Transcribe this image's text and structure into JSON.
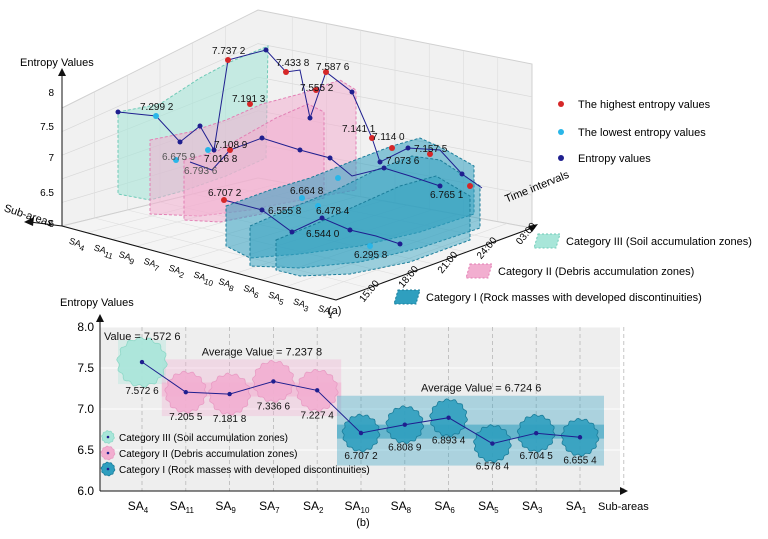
{
  "top_panel": {
    "label": "(a)",
    "z_axis_label": "Entropy Values",
    "z_ticks": [
      "6",
      "6.5",
      "7",
      "7.5",
      "8"
    ],
    "x_axis_label": "Sub-areas",
    "x_ticks": [
      "SA4",
      "SA11",
      "SA9",
      "SA7",
      "SA2",
      "SA10",
      "SA8",
      "SA6",
      "SA5",
      "SA3",
      "SA1"
    ],
    "y_axis_label": "Time intervals",
    "y_ticks": [
      "15:00",
      "18:00",
      "21:00",
      "24:00",
      "03:00"
    ],
    "legend_points": [
      {
        "label": "The highest entropy values",
        "color": "#d62728"
      },
      {
        "label": "The lowest entropy values",
        "color": "#29b6e8"
      },
      {
        "label": "Entropy values",
        "color": "#1f1f8f"
      }
    ],
    "legend_categories": [
      {
        "label": "Category III (Soil accumulation zones)",
        "color": "#a8e6d9"
      },
      {
        "label": "Category II (Debris accumulation zones)",
        "color": "#f2aed0"
      },
      {
        "label": "Category I (Rock masses with developed discontinuities)",
        "color": "#2f9fbf"
      }
    ],
    "annotations": [
      "7.737 2",
      "7.433 8",
      "7.587 6",
      "7.555 2",
      "7.299 2",
      "7.191 3",
      "7.108 9",
      "7.016 8",
      "6.675 9",
      "6.793 6",
      "7.141 1",
      "7.114 0",
      "7.157 5",
      "7.073 6",
      "6.707 2",
      "6.664 8",
      "6.555 8",
      "6.478 4",
      "6.544 0",
      "6.295 8",
      "6.765 1"
    ]
  },
  "chart_data": {
    "type": "line",
    "title": "",
    "panel_label": "(b)",
    "xlabel": "Sub-areas",
    "ylabel": "Entropy Values",
    "ylim": [
      6.0,
      8.0
    ],
    "y_ticks": [
      "6.0",
      "6.5",
      "7.0",
      "7.5",
      "8.0"
    ],
    "grid": true,
    "categories": [
      "SA4",
      "SA11",
      "SA9",
      "SA7",
      "SA2",
      "SA10",
      "SA8",
      "SA6",
      "SA5",
      "SA3",
      "SA1"
    ],
    "category_labels": [
      {
        "main": "SA",
        "sub": "4"
      },
      {
        "main": "SA",
        "sub": "11"
      },
      {
        "main": "SA",
        "sub": "9"
      },
      {
        "main": "SA",
        "sub": "7"
      },
      {
        "main": "SA",
        "sub": "2"
      },
      {
        "main": "SA",
        "sub": "10"
      },
      {
        "main": "SA",
        "sub": "8"
      },
      {
        "main": "SA",
        "sub": "6"
      },
      {
        "main": "SA",
        "sub": "5"
      },
      {
        "main": "SA",
        "sub": "3"
      },
      {
        "main": "SA",
        "sub": "1"
      }
    ],
    "values": [
      7.5726,
      7.2055,
      7.1818,
      7.3366,
      7.2274,
      6.7072,
      6.8089,
      6.8934,
      6.5784,
      6.7045,
      6.6554
    ],
    "value_labels": [
      "7.572 6",
      "7.205 5",
      "7.181 8",
      "7.336 6",
      "7.227 4",
      "6.707 2",
      "6.808 9",
      "6.893 4",
      "6.578 4",
      "6.704 5",
      "6.655 4"
    ],
    "category_of_point": [
      3,
      2,
      2,
      2,
      2,
      1,
      1,
      1,
      1,
      1,
      1
    ],
    "groups": [
      {
        "category": 3,
        "start": 0,
        "end": 0,
        "average": 7.5726,
        "average_label": "Value = 7.572 6",
        "color": "#a8e6d9"
      },
      {
        "category": 2,
        "start": 1,
        "end": 4,
        "average": 7.2378,
        "average_label": "Average Value = 7.237 8",
        "color": "#f2aed0"
      },
      {
        "category": 1,
        "start": 5,
        "end": 10,
        "average": 6.7246,
        "average_label": "Average Value = 6.724 6",
        "color": "#2f9fbf"
      }
    ],
    "legend": [
      {
        "label": "Category III (Soil accumulation zones)",
        "color": "#a8e6d9"
      },
      {
        "label": "Category II (Debris accumulation zones)",
        "color": "#f2aed0"
      },
      {
        "label": "Category I (Rock masses with developed discontinuities)",
        "color": "#2f9fbf"
      }
    ],
    "legend_position": "bottom-left",
    "line_color": "#1f1f8f"
  }
}
